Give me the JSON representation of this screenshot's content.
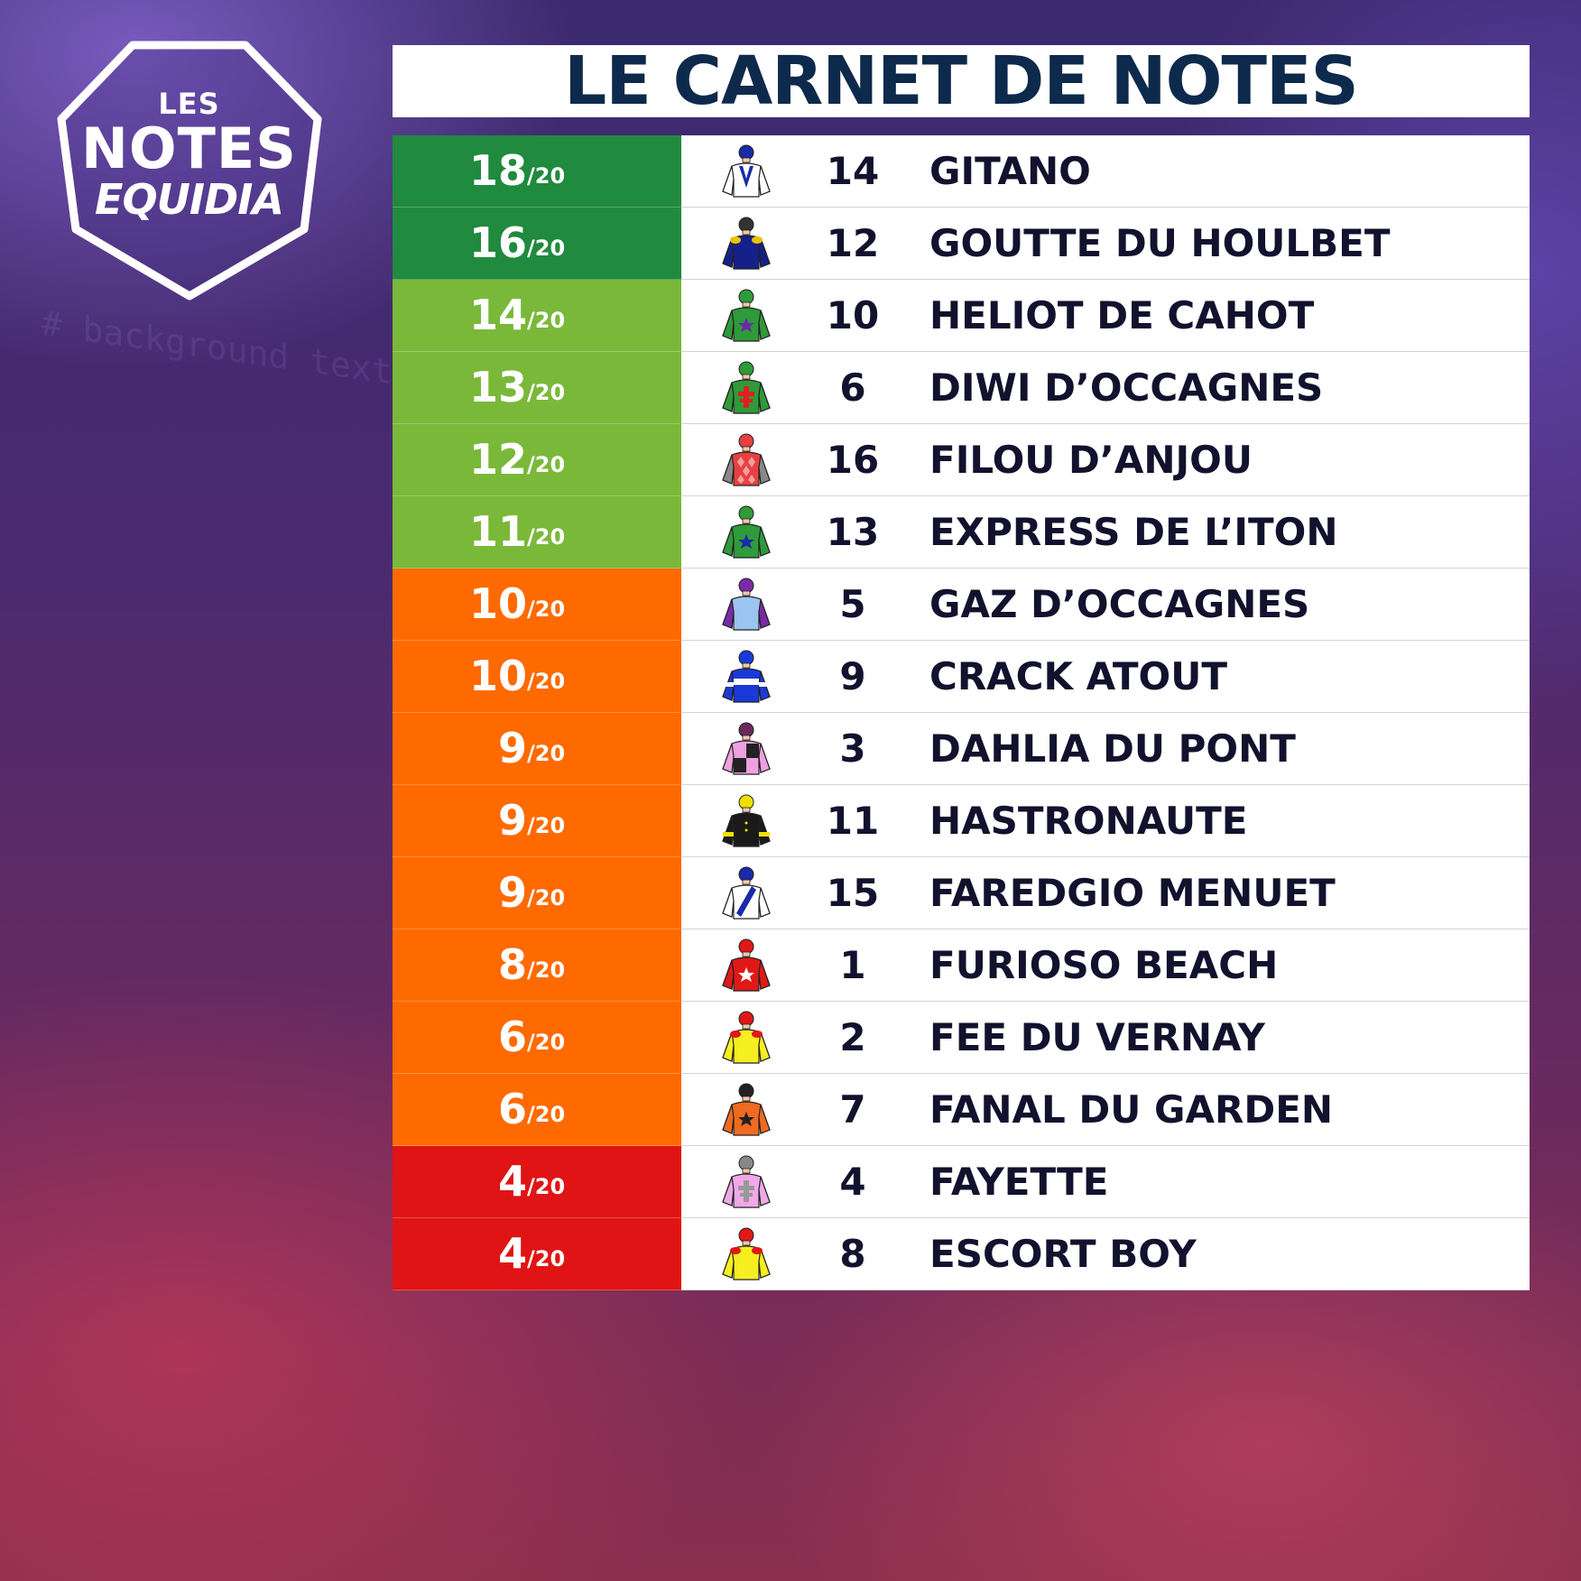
{
  "logo": {
    "line1": "LES",
    "line2": "NOTES",
    "line3": "EQUIDIA"
  },
  "title": "LE CARNET DE NOTES",
  "denominator": "/20",
  "colors": {
    "dark_green": "#208a3e",
    "light_green": "#7ab83a",
    "orange": "#ff6a00",
    "red": "#e01414",
    "title_text": "#0d2a4c"
  },
  "rows": [
    {
      "score": "18",
      "color": "#208a3e",
      "number": "14",
      "name": "GITANO",
      "silk": {
        "body": "#ffffff",
        "cap": "#1a2aa8",
        "sleeve": "#ffffff",
        "accent": "#1a2aa8",
        "pattern": "v",
        "icon": "jockey-silk-icon"
      }
    },
    {
      "score": "16",
      "color": "#208a3e",
      "number": "12",
      "name": "GOUTTE DU HOULBET",
      "silk": {
        "body": "#16208a",
        "cap": "#333333",
        "sleeve": "#16208a",
        "accent": "#e8c400",
        "pattern": "epaulets",
        "icon": "jockey-silk-icon"
      }
    },
    {
      "score": "14",
      "color": "#7ab83a",
      "number": "10",
      "name": "HELIOT DE CAHOT",
      "silk": {
        "body": "#2f9a3a",
        "cap": "#2f9a3a",
        "sleeve": "#2f9a3a",
        "accent": "#6a2aa8",
        "pattern": "star",
        "icon": "jockey-silk-icon"
      }
    },
    {
      "score": "13",
      "color": "#7ab83a",
      "number": "6",
      "name": "DIWI D’OCCAGNES",
      "silk": {
        "body": "#2f9a3a",
        "cap": "#2f9a3a",
        "sleeve": "#2f9a3a",
        "accent": "#e02020",
        "pattern": "cross",
        "icon": "jockey-silk-icon"
      }
    },
    {
      "score": "12",
      "color": "#7ab83a",
      "number": "16",
      "name": "FILOU D’ANJOU",
      "silk": {
        "body": "#e84040",
        "cap": "#e84040",
        "sleeve": "#888888",
        "accent": "#f0a0a0",
        "pattern": "diamonds",
        "icon": "jockey-silk-icon"
      }
    },
    {
      "score": "11",
      "color": "#7ab83a",
      "number": "13",
      "name": "EXPRESS DE L’ITON",
      "silk": {
        "body": "#2f9a3a",
        "cap": "#2f9a3a",
        "sleeve": "#2f9a3a",
        "accent": "#1a2aa8",
        "pattern": "star",
        "icon": "jockey-silk-icon"
      }
    },
    {
      "score": "10",
      "color": "#ff6a00",
      "number": "5",
      "name": "GAZ D’OCCAGNES",
      "silk": {
        "body": "#9cc4f0",
        "cap": "#7a2aa8",
        "sleeve": "#7a2aa8",
        "accent": "#7a2aa8",
        "pattern": "plain",
        "icon": "jockey-silk-icon"
      }
    },
    {
      "score": "10",
      "color": "#ff6a00",
      "number": "9",
      "name": "CRACK ATOUT",
      "silk": {
        "body": "#1a3ad8",
        "cap": "#1a3ad8",
        "sleeve": "#1a3ad8",
        "accent": "#ffffff",
        "pattern": "hoops",
        "icon": "jockey-silk-icon"
      }
    },
    {
      "score": "9",
      "color": "#ff6a00",
      "number": "3",
      "name": "DAHLIA DU PONT",
      "silk": {
        "body": "#f0a0e0",
        "cap": "#6a2a5a",
        "sleeve": "#f0a0e0",
        "accent": "#222222",
        "pattern": "quarter",
        "icon": "jockey-silk-icon"
      }
    },
    {
      "score": "9",
      "color": "#ff6a00",
      "number": "11",
      "name": "HASTRONAUTE",
      "silk": {
        "body": "#1a1a1a",
        "cap": "#f0e000",
        "sleeve": "#1a1a1a",
        "accent": "#f0e000",
        "pattern": "armbands",
        "icon": "jockey-silk-icon"
      }
    },
    {
      "score": "9",
      "color": "#ff6a00",
      "number": "15",
      "name": "FAREDGIO MENUET",
      "silk": {
        "body": "#ffffff",
        "cap": "#1a2aa8",
        "sleeve": "#ffffff",
        "accent": "#1a2aa8",
        "pattern": "sash",
        "icon": "jockey-silk-icon"
      }
    },
    {
      "score": "8",
      "color": "#ff6a00",
      "number": "1",
      "name": "FURIOSO BEACH",
      "silk": {
        "body": "#e01818",
        "cap": "#e01818",
        "sleeve": "#e01818",
        "accent": "#ffffff",
        "pattern": "star",
        "icon": "jockey-silk-icon"
      }
    },
    {
      "score": "6",
      "color": "#ff6a00",
      "number": "2",
      "name": "FEE DU VERNAY",
      "silk": {
        "body": "#f5ee20",
        "cap": "#e01818",
        "sleeve": "#f5ee20",
        "accent": "#e01818",
        "pattern": "epaulets",
        "icon": "jockey-silk-icon"
      }
    },
    {
      "score": "6",
      "color": "#ff6a00",
      "number": "7",
      "name": "FANAL DU GARDEN",
      "silk": {
        "body": "#f06a20",
        "cap": "#222222",
        "sleeve": "#f06a20",
        "accent": "#222222",
        "pattern": "star",
        "icon": "jockey-silk-icon"
      }
    },
    {
      "score": "4",
      "color": "#e01414",
      "number": "4",
      "name": "FAYETTE",
      "silk": {
        "body": "#f0a8e8",
        "cap": "#888888",
        "sleeve": "#f0a8e8",
        "accent": "#999999",
        "pattern": "cross",
        "icon": "jockey-silk-icon"
      }
    },
    {
      "score": "4",
      "color": "#e01414",
      "number": "8",
      "name": "ESCORT BOY",
      "silk": {
        "body": "#f5ee20",
        "cap": "#e01818",
        "sleeve": "#f5ee20",
        "accent": "#e01818",
        "pattern": "epaulets",
        "icon": "jockey-silk-icon"
      }
    }
  ]
}
